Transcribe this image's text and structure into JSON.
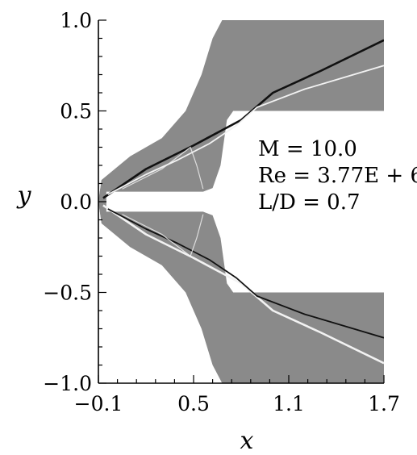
{
  "chart_data": {
    "type": "contour",
    "title": "",
    "xlabel": "x",
    "ylabel": "y",
    "xlim": [
      -0.1,
      1.7
    ],
    "ylim": [
      -1.0,
      1.0
    ],
    "x_ticks": [
      {
        "value": -0.1,
        "label": "−0.1"
      },
      {
        "value": 0.5,
        "label": "0.5"
      },
      {
        "value": 1.1,
        "label": "1.1"
      },
      {
        "value": 1.7,
        "label": "1.7"
      }
    ],
    "y_ticks": [
      {
        "value": 1.0,
        "label": "1.0"
      },
      {
        "value": 0.5,
        "label": "0.5"
      },
      {
        "value": 0.0,
        "label": "0.0"
      },
      {
        "value": -0.5,
        "label": "−0.5"
      },
      {
        "value": -1.0,
        "label": "−1.0"
      }
    ],
    "minor_ticks_per_major": 5,
    "grid": false,
    "annotations": [
      "M = 10.0",
      "Re = 3.77E + 6",
      "L/D = 0.7"
    ],
    "field": {
      "description": "numerical schlieren of hypersonic flow around a spiked body",
      "background_color": "#8a8a8a",
      "shock_dark_color": "#111111",
      "shock_light_color": "#f2f2f2",
      "mirror_symmetric_about_y0": true,
      "spike_tip": [
        -0.1,
        0.0
      ],
      "spike_half_width": 0.055,
      "spike_end_x": 0.56,
      "body_x_start": 0.75,
      "body_half_height": 0.5,
      "domain_boundary": [
        [
          -0.1,
          0.0
        ],
        [
          -0.08,
          0.12
        ],
        [
          0.1,
          0.25
        ],
        [
          0.3,
          0.35
        ],
        [
          0.45,
          0.5
        ],
        [
          0.55,
          0.7
        ],
        [
          0.62,
          0.9
        ],
        [
          0.68,
          1.0
        ],
        [
          1.7,
          1.0
        ]
      ],
      "outer_shock": [
        [
          -0.07,
          0.02
        ],
        [
          0.2,
          0.18
        ],
        [
          0.5,
          0.31
        ],
        [
          0.8,
          0.45
        ],
        [
          1.0,
          0.6
        ],
        [
          1.3,
          0.72
        ],
        [
          1.7,
          0.89
        ]
      ],
      "inner_shock": [
        [
          -0.04,
          0.04
        ],
        [
          0.2,
          0.15
        ],
        [
          0.4,
          0.23
        ],
        [
          0.6,
          0.32
        ],
        [
          0.77,
          0.42
        ],
        [
          0.9,
          0.52
        ],
        [
          1.2,
          0.62
        ],
        [
          1.7,
          0.75
        ]
      ],
      "separation_bubble": [
        [
          0.05,
          0.07
        ],
        [
          0.3,
          0.18
        ],
        [
          0.48,
          0.3
        ],
        [
          0.52,
          0.2
        ],
        [
          0.56,
          0.07
        ]
      ]
    }
  }
}
